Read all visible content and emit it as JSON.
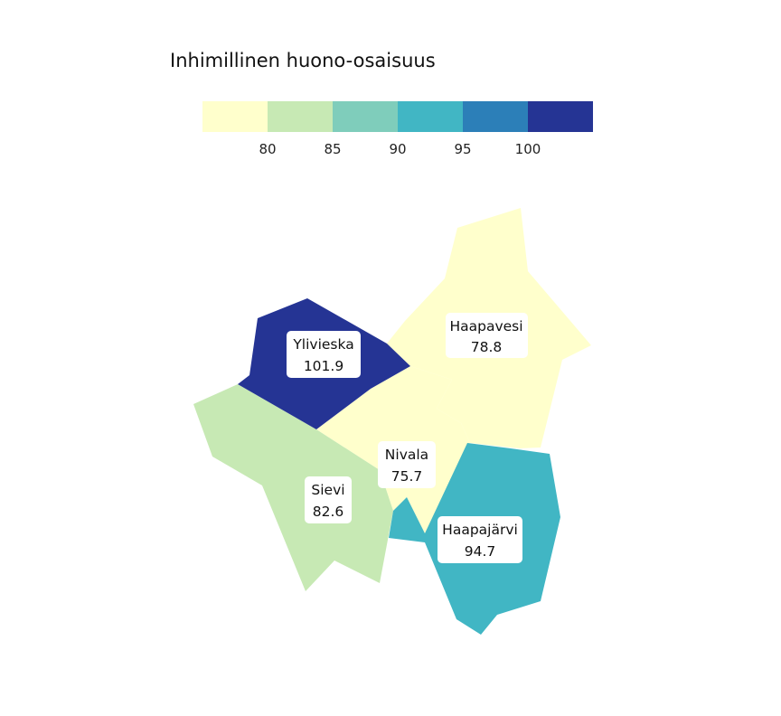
{
  "legend": {
    "title": "Inhimillinen huono-osaisuus",
    "colors": [
      "#ffffcc",
      "#c7e9b4",
      "#7fcdbb",
      "#41b6c4",
      "#2c7fb8",
      "#253494"
    ],
    "tick_labels": [
      "80",
      "85",
      "90",
      "95",
      "100"
    ]
  },
  "map": {
    "regions": [
      {
        "id": "haapavesi",
        "name": "Haapavesi",
        "value": "78.8",
        "color": "#ffffcc"
      },
      {
        "id": "nivala",
        "name": "Nivala",
        "value": "75.7",
        "color": "#ffffcc"
      },
      {
        "id": "sievi",
        "name": "Sievi",
        "value": "82.6",
        "color": "#c7e9b4"
      },
      {
        "id": "ylivieska",
        "name": "Ylivieska",
        "value": "101.9",
        "color": "#253494"
      },
      {
        "id": "haapajarvi",
        "name": "Haapajärvi",
        "value": "94.7",
        "color": "#41b6c4"
      }
    ]
  }
}
